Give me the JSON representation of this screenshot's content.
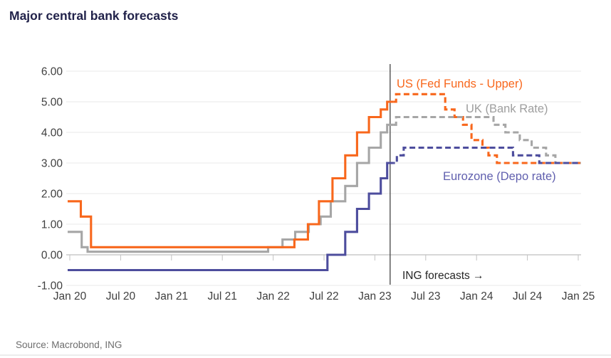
{
  "chart_data": {
    "type": "line",
    "title": "Major central bank forecasts",
    "source": "Source: Macrobond, ING",
    "legend_position": "inline-labels",
    "grid": "horizontal",
    "y_axis": {
      "ticks": [
        {
          "value": 6,
          "label": "6.00"
        },
        {
          "value": 5,
          "label": "5.00"
        },
        {
          "value": 4,
          "label": "4.00"
        },
        {
          "value": 3,
          "label": "3.00"
        },
        {
          "value": 2,
          "label": "2.00"
        },
        {
          "value": 1,
          "label": "1.00"
        },
        {
          "value": 0,
          "label": "0.00"
        },
        {
          "value": -1,
          "label": "-1.00"
        }
      ],
      "range": [
        -1.35,
        6.3
      ],
      "unit": "percent"
    },
    "x_axis": {
      "unit": "months since Jan 2020",
      "ticks": [
        {
          "month": 0,
          "label": "Jan 20"
        },
        {
          "month": 6,
          "label": "Jul 20"
        },
        {
          "month": 12,
          "label": "Jan 21"
        },
        {
          "month": 18,
          "label": "Jul 21"
        },
        {
          "month": 24,
          "label": "Jan 22"
        },
        {
          "month": 30,
          "label": "Jul 22"
        },
        {
          "month": 36,
          "label": "Jan 23"
        },
        {
          "month": 42,
          "label": "Jul 23"
        },
        {
          "month": 48,
          "label": "Jan 24"
        },
        {
          "month": 54,
          "label": "Jul 24"
        },
        {
          "month": 60,
          "label": "Jan 25"
        }
      ]
    },
    "forecast_divider": {
      "month": 37.8,
      "label": "ING forecasts →"
    },
    "history_end_month": 38.2,
    "end_month": 60.3,
    "series": [
      {
        "name": "US (Fed Funds - Upper)",
        "color": "#f8671c",
        "label_color": "#f8671c",
        "history": [
          [
            -0.25,
            1.75
          ],
          [
            1.3,
            1.25
          ],
          [
            2.5,
            0.25
          ],
          [
            26.5,
            0.5
          ],
          [
            28.1,
            1.0
          ],
          [
            29.4,
            1.75
          ],
          [
            31.0,
            2.5
          ],
          [
            32.5,
            3.25
          ],
          [
            33.9,
            4.0
          ],
          [
            35.3,
            4.5
          ],
          [
            36.7,
            4.75
          ],
          [
            37.45,
            5.0
          ]
        ],
        "forecast": [
          [
            38.2,
            5.0
          ],
          [
            38.5,
            5.25
          ],
          [
            44.3,
            4.75
          ],
          [
            45.4,
            4.5
          ],
          [
            46.4,
            4.25
          ],
          [
            47.4,
            3.75
          ],
          [
            48.7,
            3.5
          ],
          [
            49.4,
            3.25
          ],
          [
            50.4,
            3.0
          ]
        ]
      },
      {
        "name": "UK (Bank Rate)",
        "color": "#a6a6a6",
        "label_color": "#9e9e9e",
        "history": [
          [
            -0.25,
            0.75
          ],
          [
            1.4,
            0.25
          ],
          [
            2.1,
            0.1
          ],
          [
            23.4,
            0.25
          ],
          [
            25.1,
            0.5
          ],
          [
            26.6,
            0.75
          ],
          [
            28.2,
            1.0
          ],
          [
            29.6,
            1.25
          ],
          [
            30.8,
            1.75
          ],
          [
            32.5,
            2.25
          ],
          [
            33.9,
            3.0
          ],
          [
            35.3,
            3.5
          ],
          [
            36.7,
            4.0
          ],
          [
            37.45,
            4.25
          ]
        ],
        "forecast": [
          [
            38.2,
            4.25
          ],
          [
            38.5,
            4.5
          ],
          [
            50.0,
            4.25
          ],
          [
            51.4,
            4.0
          ],
          [
            53.1,
            3.75
          ],
          [
            54.5,
            3.5
          ],
          [
            56.2,
            3.25
          ],
          [
            57.3,
            3.0
          ]
        ]
      },
      {
        "name": "Eurozone (Depo rate)",
        "color": "#4d4d9d",
        "label_color": "#605fae",
        "history": [
          [
            -0.25,
            -0.5
          ],
          [
            30.4,
            0.0
          ],
          [
            32.5,
            0.75
          ],
          [
            33.9,
            1.5
          ],
          [
            35.3,
            2.0
          ],
          [
            36.7,
            2.5
          ],
          [
            37.45,
            3.0
          ]
        ],
        "forecast": [
          [
            38.2,
            3.0
          ],
          [
            38.6,
            3.25
          ],
          [
            39.4,
            3.5
          ],
          [
            52.3,
            3.25
          ],
          [
            55.4,
            3.0
          ]
        ]
      }
    ]
  }
}
